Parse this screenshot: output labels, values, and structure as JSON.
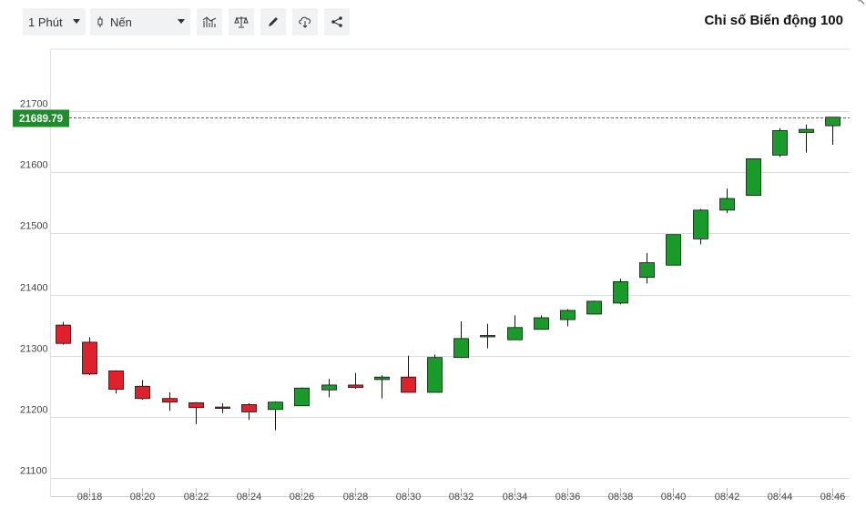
{
  "toolbar": {
    "interval": "1 Phút",
    "chart_type": "Nến",
    "icons": [
      "indicators-icon",
      "compare-icon",
      "draw-icon",
      "download-icon",
      "share-icon"
    ]
  },
  "title": "Chỉ số Biến động 100",
  "colors": {
    "up": "#1a9a2a",
    "down": "#e0202a",
    "price_line": "#c8323c",
    "price_tag": "#1f8b2c",
    "grid": "#dcdcdc"
  },
  "chart_data": {
    "type": "candlestick",
    "title": "Chỉ số Biến động 100",
    "current_price": "21689.79",
    "current_value": 21689.79,
    "yticks": [
      21100,
      21200,
      21300,
      21400,
      21500,
      21600,
      21700
    ],
    "ylim": [
      21090,
      21800
    ],
    "xticks": [
      "08:18",
      "08:20",
      "08:22",
      "08:24",
      "08:26",
      "08:28",
      "08:30",
      "08:32",
      "08:34",
      "08:36",
      "08:38",
      "08:40",
      "08:42",
      "08:44",
      "08:46"
    ],
    "candles": [
      {
        "t": "08:17",
        "o": 21350,
        "h": 21355,
        "l": 21318,
        "c": 21320
      },
      {
        "t": "08:18",
        "o": 21322,
        "h": 21330,
        "l": 21268,
        "c": 21270
      },
      {
        "t": "08:19",
        "o": 21275,
        "h": 21276,
        "l": 21238,
        "c": 21245
      },
      {
        "t": "08:20",
        "o": 21250,
        "h": 21260,
        "l": 21228,
        "c": 21230
      },
      {
        "t": "08:21",
        "o": 21230,
        "h": 21240,
        "l": 21210,
        "c": 21224
      },
      {
        "t": "08:22",
        "o": 21223,
        "h": 21224,
        "l": 21188,
        "c": 21215
      },
      {
        "t": "08:23",
        "o": 21216,
        "h": 21222,
        "l": 21206,
        "c": 21214
      },
      {
        "t": "08:24",
        "o": 21220,
        "h": 21222,
        "l": 21195,
        "c": 21208
      },
      {
        "t": "08:25",
        "o": 21212,
        "h": 21225,
        "l": 21178,
        "c": 21224
      },
      {
        "t": "08:26",
        "o": 21218,
        "h": 21248,
        "l": 21218,
        "c": 21247
      },
      {
        "t": "08:27",
        "o": 21244,
        "h": 21262,
        "l": 21232,
        "c": 21252
      },
      {
        "t": "08:28",
        "o": 21252,
        "h": 21272,
        "l": 21246,
        "c": 21248
      },
      {
        "t": "08:29",
        "o": 21261,
        "h": 21268,
        "l": 21230,
        "c": 21265
      },
      {
        "t": "08:30",
        "o": 21265,
        "h": 21300,
        "l": 21240,
        "c": 21240
      },
      {
        "t": "08:31",
        "o": 21240,
        "h": 21302,
        "l": 21240,
        "c": 21297
      },
      {
        "t": "08:32",
        "o": 21297,
        "h": 21356,
        "l": 21296,
        "c": 21328
      },
      {
        "t": "08:33",
        "o": 21331,
        "h": 21352,
        "l": 21312,
        "c": 21333
      },
      {
        "t": "08:34",
        "o": 21326,
        "h": 21366,
        "l": 21326,
        "c": 21346
      },
      {
        "t": "08:35",
        "o": 21343,
        "h": 21366,
        "l": 21343,
        "c": 21362
      },
      {
        "t": "08:36",
        "o": 21359,
        "h": 21376,
        "l": 21348,
        "c": 21374
      },
      {
        "t": "08:37",
        "o": 21368,
        "h": 21390,
        "l": 21368,
        "c": 21389
      },
      {
        "t": "08:38",
        "o": 21386,
        "h": 21426,
        "l": 21384,
        "c": 21421
      },
      {
        "t": "08:39",
        "o": 21428,
        "h": 21468,
        "l": 21418,
        "c": 21452
      },
      {
        "t": "08:40",
        "o": 21448,
        "h": 21498,
        "l": 21448,
        "c": 21498
      },
      {
        "t": "08:41",
        "o": 21491,
        "h": 21540,
        "l": 21482,
        "c": 21538
      },
      {
        "t": "08:42",
        "o": 21538,
        "h": 21573,
        "l": 21533,
        "c": 21557
      },
      {
        "t": "08:43",
        "o": 21562,
        "h": 21622,
        "l": 21562,
        "c": 21622
      },
      {
        "t": "08:44",
        "o": 21628,
        "h": 21672,
        "l": 21625,
        "c": 21668
      },
      {
        "t": "08:45",
        "o": 21665,
        "h": 21678,
        "l": 21632,
        "c": 21670
      },
      {
        "t": "08:46",
        "o": 21676,
        "h": 21690,
        "l": 21645,
        "c": 21690
      }
    ]
  }
}
